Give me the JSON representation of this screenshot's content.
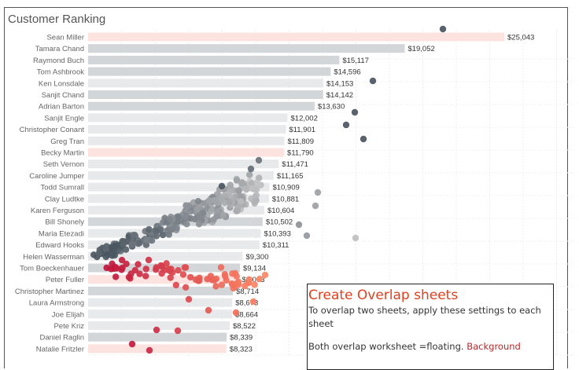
{
  "sheet": {
    "title": "Customer Ranking"
  },
  "chart_data": {
    "type": "bar",
    "title": "Customer Ranking",
    "categories": [
      "Sean Miller",
      "Tamara Chand",
      "Raymond Buch",
      "Tom Ashbrook",
      "Ken Lonsdale",
      "Sanjit Chand",
      "Adrian Barton",
      "Sanjit Engle",
      "Christopher Conant",
      "Greg Tran",
      "Becky Martin",
      "Seth Vernon",
      "Caroline Jumper",
      "Todd Sumrall",
      "Clay Ludtke",
      "Karen Ferguson",
      "Bill Shonely",
      "Maria Etezadi",
      "Edward Hooks",
      "Helen Wasserman",
      "Tom Boeckenhauer",
      "Peter Fuller",
      "Christopher Martinez",
      "Laura Armstrong",
      "Joe Elijah",
      "Pete Kriz",
      "Daniel Raglin",
      "Natalie Fritzler"
    ],
    "values": [
      25043,
      19052,
      15117,
      14596,
      14153,
      14142,
      13630,
      12002,
      11901,
      11809,
      11790,
      11471,
      11165,
      10909,
      10881,
      10604,
      10502,
      10393,
      10311,
      9300,
      9134,
      9063,
      8714,
      8673,
      8664,
      8522,
      8339,
      8323
    ],
    "value_labels": [
      "$25,043",
      "$19,052",
      "$15,117",
      "$14,596",
      "$14,153",
      "$14,142",
      "$13,630",
      "$12,002",
      "$11,901",
      "$11,809",
      "$11,790",
      "$11,471",
      "$11,165",
      "$10,909",
      "$10,881",
      "$10,604",
      "$10,502",
      "$10,393",
      "$10,311",
      "$9,300",
      "$9,134",
      "$9,063",
      "$8,714",
      "$8,673",
      "$8,664",
      "$8,522",
      "$8,339",
      "$8,323"
    ],
    "shade": [
      2,
      1,
      1,
      1,
      0,
      1,
      1,
      0,
      0,
      0,
      2,
      0,
      0,
      0,
      0,
      0,
      1,
      0,
      0,
      0,
      1,
      2,
      1,
      0,
      0,
      0,
      1,
      2
    ],
    "colors": {
      "highlight": "#fde3df",
      "dark": "#d3d6d9",
      "light": "#e8e9ea",
      "scatter_dark": "#4a5661",
      "scatter_light": "#c4c4c4",
      "scatter_red": "#c0143c",
      "scatter_orange": "#ff8a66"
    },
    "grid": true
  },
  "note": {
    "title": "Create Overlap sheets",
    "line1": "To overlap two sheets, apply these settings to each sheet",
    "line2": "Both overlap worksheet =floating.",
    "line2_red": "Background"
  }
}
